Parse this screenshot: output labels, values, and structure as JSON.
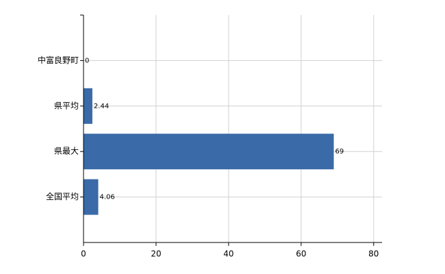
{
  "chart_data": {
    "type": "bar",
    "orientation": "horizontal",
    "categories": [
      "中富良野町",
      "県平均",
      "県最大",
      "全国平均"
    ],
    "values": [
      0,
      2.44,
      69,
      4.06
    ],
    "color": "#3a6aa8",
    "xlim": [
      0,
      82.3
    ],
    "xticks": [
      0,
      20,
      40,
      60,
      80
    ],
    "grid": true
  }
}
